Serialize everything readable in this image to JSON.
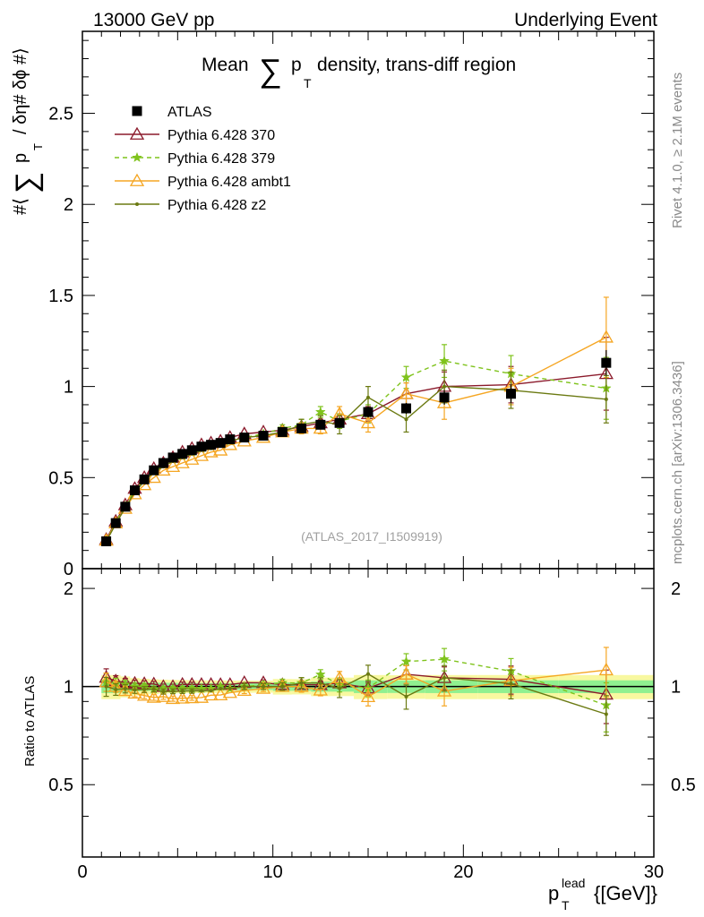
{
  "header": {
    "left": "13000 GeV pp",
    "right": "Underlying Event",
    "title_prefix": "Mean",
    "title_sigma": "∑",
    "title_p": "p",
    "title_T": "T",
    "title_suffix": "density, trans-diff region",
    "watermark": "(ATLAS_2017_I1509919)",
    "side_rivet": "Rivet 4.1.0, ≥ 2.1M events",
    "side_mcplots": "mcplots.cern.ch [arXiv:1306.3436]"
  },
  "axes": {
    "ylabel_hash1": "#⟨",
    "ylabel_sigma": "∑",
    "ylabel_p": "p",
    "ylabel_T": "T",
    "ylabel_rest": "/ δη# δϕ #⟩",
    "ratio_ylabel": "Ratio to ATLAS",
    "xlabel_p": "p",
    "xlabel_sup": "lead",
    "xlabel_sub": "T",
    "xlabel_unit": "{[GeV]}"
  },
  "chart_data": {
    "type": "line",
    "xlim": [
      0,
      30
    ],
    "main_ylim": [
      0,
      2.95
    ],
    "ratio_ylim": [
      0.3,
      2.3
    ],
    "x_ticks": [
      0,
      10,
      20,
      30
    ],
    "x_tick_labels": [
      "0",
      "10",
      "20",
      "30"
    ],
    "main_y_ticks": [
      0,
      0.5,
      1,
      1.5,
      2,
      2.5
    ],
    "main_y_tick_labels": [
      "0",
      "0.5",
      "1",
      "1.5",
      "2",
      "2.5"
    ],
    "ratio_y_ticks": [
      0.5,
      1,
      2
    ],
    "ratio_y_tick_labels": [
      "0.5",
      "1",
      "2"
    ],
    "x": [
      1.25,
      1.75,
      2.25,
      2.75,
      3.25,
      3.75,
      4.25,
      4.75,
      5.25,
      5.75,
      6.25,
      6.75,
      7.25,
      7.75,
      8.5,
      9.5,
      10.5,
      11.5,
      12.5,
      13.5,
      15,
      17,
      19,
      22.5,
      27.5
    ],
    "data": {
      "name": "ATLAS",
      "values": [
        0.15,
        0.25,
        0.34,
        0.43,
        0.49,
        0.54,
        0.58,
        0.61,
        0.63,
        0.65,
        0.67,
        0.68,
        0.69,
        0.71,
        0.72,
        0.73,
        0.75,
        0.77,
        0.79,
        0.8,
        0.86,
        0.88,
        0.94,
        0.96,
        1.13
      ],
      "errors": [
        0.01,
        0.01,
        0.01,
        0.01,
        0.01,
        0.01,
        0.01,
        0.01,
        0.01,
        0.01,
        0.01,
        0.01,
        0.01,
        0.01,
        0.01,
        0.01,
        0.015,
        0.015,
        0.02,
        0.02,
        0.03,
        0.03,
        0.04,
        0.05,
        0.07
      ]
    },
    "series": [
      {
        "name": "Pythia 6.428 370",
        "color": "#8b1a2b",
        "dashed": false,
        "marker": "triangle-open",
        "values": [
          0.16,
          0.26,
          0.35,
          0.44,
          0.5,
          0.55,
          0.58,
          0.61,
          0.64,
          0.66,
          0.68,
          0.69,
          0.7,
          0.72,
          0.74,
          0.75,
          0.76,
          0.78,
          0.8,
          0.82,
          0.85,
          0.96,
          1.0,
          1.01,
          1.07
        ],
        "errors": [
          0.01,
          0.01,
          0.01,
          0.01,
          0.01,
          0.01,
          0.01,
          0.01,
          0.01,
          0.01,
          0.01,
          0.01,
          0.01,
          0.01,
          0.01,
          0.015,
          0.015,
          0.02,
          0.02,
          0.03,
          0.04,
          0.06,
          0.08,
          0.1,
          0.2
        ]
      },
      {
        "name": "Pythia 6.428 379",
        "color": "#7fc31c",
        "dashed": true,
        "marker": "star",
        "values": [
          0.155,
          0.255,
          0.345,
          0.43,
          0.49,
          0.53,
          0.57,
          0.6,
          0.62,
          0.64,
          0.66,
          0.67,
          0.69,
          0.7,
          0.72,
          0.74,
          0.77,
          0.79,
          0.86,
          0.81,
          0.85,
          1.05,
          1.14,
          1.07,
          0.99
        ],
        "errors": [
          0.01,
          0.01,
          0.01,
          0.01,
          0.01,
          0.01,
          0.01,
          0.01,
          0.01,
          0.01,
          0.01,
          0.01,
          0.01,
          0.01,
          0.015,
          0.015,
          0.02,
          0.03,
          0.03,
          0.04,
          0.05,
          0.06,
          0.09,
          0.1,
          0.17
        ]
      },
      {
        "name": "Pythia 6.428 ambt1",
        "color": "#f5a623",
        "dashed": false,
        "marker": "triangle-open",
        "values": [
          0.155,
          0.25,
          0.33,
          0.41,
          0.46,
          0.5,
          0.54,
          0.56,
          0.58,
          0.6,
          0.62,
          0.64,
          0.65,
          0.68,
          0.7,
          0.72,
          0.75,
          0.77,
          0.77,
          0.85,
          0.8,
          0.96,
          0.91,
          1.0,
          1.27
        ],
        "errors": [
          0.01,
          0.01,
          0.01,
          0.01,
          0.01,
          0.01,
          0.01,
          0.01,
          0.01,
          0.01,
          0.01,
          0.01,
          0.01,
          0.01,
          0.015,
          0.015,
          0.02,
          0.03,
          0.03,
          0.04,
          0.05,
          0.06,
          0.09,
          0.1,
          0.22
        ]
      },
      {
        "name": "Pythia 6.428 z2",
        "color": "#6b7a12",
        "dashed": false,
        "marker": "dot",
        "values": [
          0.15,
          0.245,
          0.335,
          0.42,
          0.48,
          0.53,
          0.56,
          0.59,
          0.61,
          0.63,
          0.65,
          0.66,
          0.68,
          0.7,
          0.72,
          0.73,
          0.75,
          0.79,
          0.81,
          0.79,
          0.94,
          0.82,
          1.0,
          0.98,
          0.93
        ],
        "errors": [
          0.01,
          0.01,
          0.01,
          0.01,
          0.01,
          0.01,
          0.01,
          0.01,
          0.01,
          0.01,
          0.01,
          0.01,
          0.01,
          0.01,
          0.015,
          0.015,
          0.02,
          0.03,
          0.03,
          0.05,
          0.06,
          0.07,
          0.09,
          0.1,
          0.13
        ]
      }
    ],
    "ratio_band": {
      "inner_halfwidth_max": 0.035,
      "outer_halfwidth_max": 0.07
    },
    "band_colors": {
      "inner": "#90f090",
      "outer": "#f8f8a0"
    }
  }
}
